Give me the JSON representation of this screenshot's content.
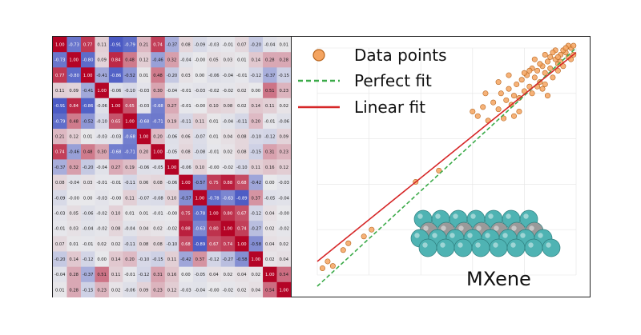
{
  "heatmap": {
    "matrix": [
      [
        "1.00",
        "-0.73",
        "0.77",
        "0.11",
        "-0.91",
        "-0.79",
        "0.21",
        "0.74",
        "-0.37",
        "0.08",
        "-0.09",
        "-0.03",
        "-0.01",
        "0.07",
        "-0.20",
        "-0.04",
        "0.01"
      ],
      [
        "-0.73",
        "1.00",
        "-0.80",
        "0.09",
        "0.84",
        "0.48",
        "0.12",
        "-0.46",
        "0.32",
        "-0.04",
        "-0.00",
        "0.05",
        "0.03",
        "0.01",
        "0.14",
        "0.28",
        "0.28"
      ],
      [
        "0.77",
        "-0.80",
        "1.00",
        "-0.41",
        "-0.86",
        "-0.52",
        "0.01",
        "0.48",
        "-0.20",
        "0.03",
        "0.00",
        "-0.06",
        "-0.04",
        "-0.01",
        "-0.12",
        "-0.37",
        "-0.15"
      ],
      [
        "0.11",
        "0.09",
        "-0.41",
        "1.00",
        "-0.06",
        "-0.10",
        "-0.03",
        "0.30",
        "-0.04",
        "-0.01",
        "-0.03",
        "-0.02",
        "-0.02",
        "0.02",
        "0.00",
        "0.51",
        "0.23"
      ],
      [
        "-0.91",
        "0.84",
        "-0.86",
        "-0.06",
        "1.00",
        "0.65",
        "-0.03",
        "-0.68",
        "0.27",
        "-0.01",
        "-0.00",
        "0.10",
        "0.08",
        "0.02",
        "0.14",
        "0.11",
        "0.02"
      ],
      [
        "-0.79",
        "0.48",
        "-0.52",
        "-0.10",
        "0.65",
        "1.00",
        "-0.68",
        "-0.71",
        "0.19",
        "-0.11",
        "0.11",
        "0.01",
        "-0.04",
        "-0.11",
        "0.20",
        "-0.01",
        "-0.06"
      ],
      [
        "0.21",
        "0.12",
        "0.01",
        "-0.03",
        "-0.03",
        "-0.68",
        "1.00",
        "0.20",
        "-0.06",
        "0.06",
        "-0.07",
        "0.01",
        "0.04",
        "0.08",
        "-0.10",
        "-0.12",
        "0.09"
      ],
      [
        "0.74",
        "-0.46",
        "0.48",
        "0.30",
        "-0.68",
        "-0.71",
        "0.20",
        "1.00",
        "-0.05",
        "0.08",
        "-0.08",
        "-0.01",
        "0.02",
        "0.08",
        "-0.15",
        "0.31",
        "0.23"
      ],
      [
        "-0.37",
        "0.32",
        "-0.20",
        "-0.04",
        "0.27",
        "0.19",
        "-0.06",
        "-0.05",
        "1.00",
        "-0.06",
        "0.10",
        "-0.00",
        "-0.02",
        "-0.10",
        "0.11",
        "0.16",
        "0.12"
      ],
      [
        "0.08",
        "-0.04",
        "0.03",
        "-0.01",
        "-0.01",
        "-0.11",
        "0.06",
        "0.08",
        "-0.06",
        "1.00",
        "-0.57",
        "0.75",
        "0.88",
        "0.68",
        "-0.42",
        "0.00",
        "-0.03"
      ],
      [
        "-0.09",
        "-0.00",
        "0.00",
        "-0.03",
        "-0.00",
        "0.11",
        "-0.07",
        "-0.08",
        "0.10",
        "-0.57",
        "1.00",
        "-0.78",
        "-0.63",
        "-0.89",
        "0.37",
        "-0.05",
        "-0.04"
      ],
      [
        "-0.03",
        "0.05",
        "-0.06",
        "-0.02",
        "0.10",
        "0.01",
        "0.01",
        "-0.01",
        "-0.00",
        "0.75",
        "-0.78",
        "1.00",
        "0.80",
        "0.67",
        "-0.12",
        "0.04",
        "-0.00"
      ],
      [
        "-0.01",
        "0.03",
        "-0.04",
        "-0.02",
        "0.08",
        "-0.04",
        "0.04",
        "0.02",
        "-0.02",
        "0.88",
        "-0.63",
        "0.80",
        "1.00",
        "0.74",
        "-0.27",
        "0.02",
        "-0.02"
      ],
      [
        "0.07",
        "0.01",
        "-0.01",
        "0.02",
        "0.02",
        "-0.11",
        "0.08",
        "0.08",
        "-0.10",
        "0.68",
        "-0.89",
        "0.67",
        "0.74",
        "1.00",
        "-0.58",
        "0.04",
        "0.02"
      ],
      [
        "-0.20",
        "0.14",
        "-0.12",
        "0.00",
        "0.14",
        "0.20",
        "-0.10",
        "-0.15",
        "0.11",
        "-0.42",
        "0.37",
        "-0.12",
        "-0.27",
        "-0.58",
        "1.00",
        "0.02",
        "0.04"
      ],
      [
        "-0.04",
        "0.28",
        "-0.37",
        "0.51",
        "0.11",
        "-0.01",
        "-0.12",
        "0.31",
        "0.16",
        "0.00",
        "-0.05",
        "0.04",
        "0.02",
        "0.04",
        "0.02",
        "1.00",
        "0.54"
      ],
      [
        "0.01",
        "0.28",
        "-0.15",
        "0.23",
        "0.02",
        "-0.06",
        "0.09",
        "0.23",
        "0.12",
        "-0.03",
        "-0.04",
        "-0.00",
        "-0.02",
        "0.02",
        "0.04",
        "0.54",
        "1.00"
      ]
    ]
  },
  "chart_data": {
    "type": "scatter",
    "title": "",
    "xlabel": "",
    "ylabel": "",
    "xlim": [
      0,
      1
    ],
    "ylim": [
      0,
      1
    ],
    "series": [
      {
        "name": "Data points",
        "points": [
          [
            0.02,
            0.03
          ],
          [
            0.04,
            0.06
          ],
          [
            0.06,
            0.04
          ],
          [
            0.1,
            0.11
          ],
          [
            0.12,
            0.14
          ],
          [
            0.18,
            0.17
          ],
          [
            0.21,
            0.2
          ],
          [
            0.38,
            0.41
          ],
          [
            0.47,
            0.46
          ],
          [
            0.6,
            0.72
          ],
          [
            0.62,
            0.7
          ],
          [
            0.64,
            0.74
          ],
          [
            0.66,
            0.68
          ],
          [
            0.68,
            0.76
          ],
          [
            0.7,
            0.73
          ],
          [
            0.71,
            0.8
          ],
          [
            0.72,
            0.69
          ],
          [
            0.73,
            0.77
          ],
          [
            0.74,
            0.82
          ],
          [
            0.75,
            0.75
          ],
          [
            0.76,
            0.79
          ],
          [
            0.77,
            0.84
          ],
          [
            0.78,
            0.78
          ],
          [
            0.79,
            0.86
          ],
          [
            0.8,
            0.81
          ],
          [
            0.81,
            0.88
          ],
          [
            0.82,
            0.83
          ],
          [
            0.83,
            0.8
          ],
          [
            0.84,
            0.87
          ],
          [
            0.85,
            0.9
          ],
          [
            0.86,
            0.85
          ],
          [
            0.87,
            0.92
          ],
          [
            0.88,
            0.89
          ],
          [
            0.89,
            0.94
          ],
          [
            0.9,
            0.91
          ],
          [
            0.91,
            0.87
          ],
          [
            0.92,
            0.95
          ],
          [
            0.93,
            0.93
          ],
          [
            0.94,
            0.97
          ],
          [
            0.95,
            0.92
          ],
          [
            0.96,
            0.98
          ],
          [
            0.97,
            0.96
          ],
          [
            0.98,
            1.0
          ],
          [
            0.99,
            0.97
          ],
          [
            0.95,
            0.99
          ],
          [
            0.93,
            0.9
          ],
          [
            0.9,
            0.96
          ],
          [
            0.88,
            0.84
          ],
          [
            0.86,
            0.93
          ],
          [
            0.84,
            0.95
          ],
          [
            0.8,
            0.89
          ],
          [
            0.78,
            0.72
          ],
          [
            0.76,
            0.7
          ],
          [
            0.74,
            0.88
          ],
          [
            0.92,
            0.99
          ],
          [
            0.97,
            1.01
          ],
          [
            0.89,
            0.79
          ],
          [
            0.83,
            0.91
          ],
          [
            0.91,
            0.98
          ],
          [
            0.98,
            0.95
          ],
          [
            0.65,
            0.8
          ],
          [
            0.7,
            0.85
          ],
          [
            0.87,
            0.82
          ],
          [
            0.94,
            0.94
          ],
          [
            0.96,
            1.0
          ],
          [
            0.99,
            1.01
          ],
          [
            0.85,
            0.83
          ],
          [
            0.82,
            0.9
          ],
          [
            0.88,
            0.97
          ],
          [
            0.93,
            0.96
          ]
        ]
      },
      {
        "name": "Perfect fit",
        "x": [
          0,
          1
        ],
        "y": [
          0,
          1
        ]
      },
      {
        "name": "Linear fit",
        "x": [
          0,
          1
        ],
        "y": [
          0.06,
          0.98
        ]
      }
    ],
    "legend": [
      "Data points",
      "Perfect fit",
      "Linear fit"
    ],
    "legend_position": "top-left"
  },
  "colors": {
    "point_fill": "#f4a460",
    "point_stroke": "#b8651e",
    "perfect_fit": "#3cab4a",
    "linear_fit": "#d62728",
    "atom_ti": "#4fb3b3",
    "atom_c": "#9a9a9a"
  },
  "inset": {
    "label": "MXene",
    "icon": "mxene-structure-icon"
  }
}
